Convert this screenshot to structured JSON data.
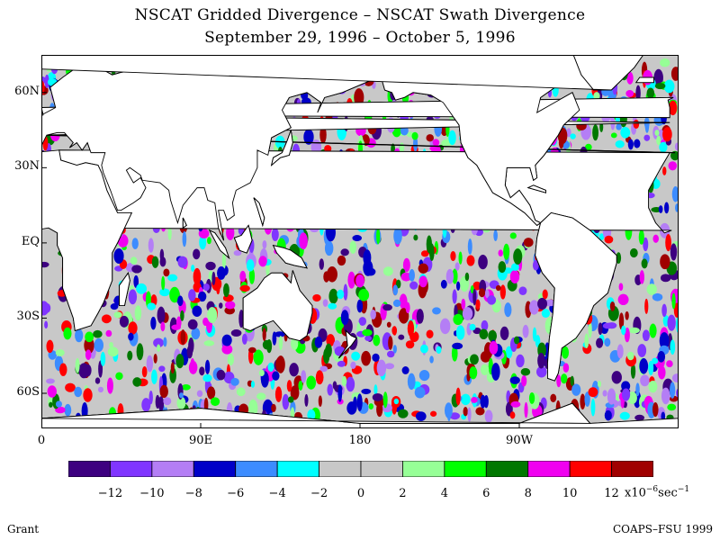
{
  "title_line1": "NSCAT Gridded Divergence – NSCAT Swath Divergence",
  "title_line2": "September 29, 1996 – October 5, 1996",
  "lat_ticks": [
    {
      "label": "60N",
      "lat": 60
    },
    {
      "label": "30N",
      "lat": 30
    },
    {
      "label": "EQ",
      "lat": 0
    },
    {
      "label": "30S",
      "lat": -30
    },
    {
      "label": "60S",
      "lat": -60
    }
  ],
  "lon_ticks": [
    {
      "label": "0",
      "lon": 0
    },
    {
      "label": "90E",
      "lon": 90
    },
    {
      "label": "180",
      "lon": 180
    },
    {
      "label": "90W",
      "lon": 270
    }
  ],
  "map": {
    "lon_range": [
      0,
      360
    ],
    "lat_range": [
      -74,
      75
    ],
    "land_color": "#ffffff",
    "coastline_color": "#000000"
  },
  "colorbar": {
    "colors": [
      "#3d0080",
      "#8035ff",
      "#b47ef5",
      "#0000c8",
      "#3c8cff",
      "#00ffff",
      "#c8c8c8",
      "#c8c8c8",
      "#96ff96",
      "#00ff00",
      "#007800",
      "#f000f0",
      "#ff0000",
      "#a00000"
    ],
    "tick_labels": [
      "−12",
      "−10",
      "−8",
      "−6",
      "−4",
      "−2",
      "0",
      "2",
      "4",
      "6",
      "8",
      "10",
      "12"
    ],
    "units_main": "x10",
    "units_exp": "−6",
    "units_tail": "sec",
    "units_tail_exp": "−1"
  },
  "footer_left": "Grant",
  "footer_right": "COAPS–FSU 1999"
}
